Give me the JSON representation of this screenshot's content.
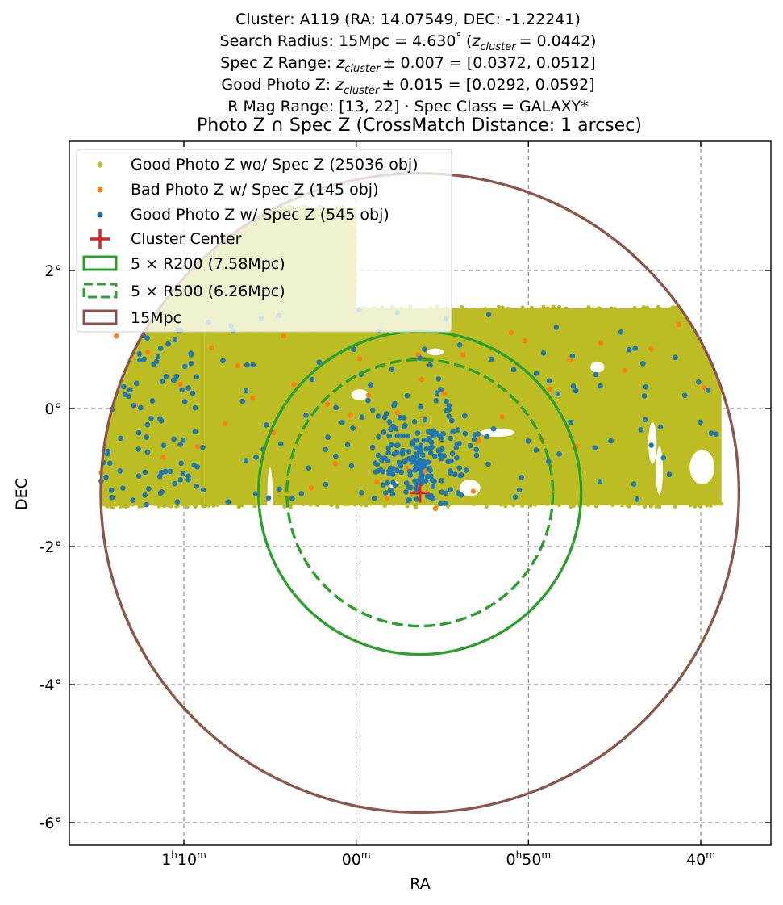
{
  "header": {
    "line1": "Cluster: A119 (RA: 14.07549, DEC: -1.22241)",
    "line2_a": "Search Radius: 15Mpc = 4.630",
    "line2_deg": "°",
    "line2_b": "(",
    "line2_z": "z",
    "line2_sub": "cluster",
    "line2_c": "= 0.0442)",
    "line3_a": "Spec Z Range: ",
    "line3_z": "z",
    "line3_sub": "cluster",
    "line3_c": "± 0.007 = [0.0372, 0.0512]",
    "line4_a": "Good Photo Z: ",
    "line4_z": "z",
    "line4_sub": "cluster",
    "line4_c": "± 0.015 = [0.0292, 0.0592]",
    "line5": "R Mag Range: [13, 22] · Spec Class = GALAXY*",
    "title": "Photo Z ∩ Spec Z (CrossMatch Distance: 1 arcsec)"
  },
  "chart_data": {
    "type": "scatter",
    "xlabel": "RA",
    "ylabel": "DEC",
    "xlim_deg": [
      19.0,
      -1.3
    ],
    "ylim_deg": [
      -6.3,
      3.9
    ],
    "x_ticks": [
      {
        "value": 17.5,
        "h": "1",
        "hs": "h",
        "m": "10",
        "ms": "m"
      },
      {
        "value": 15.0,
        "h": "",
        "hs": "",
        "m": "00",
        "ms": "m"
      },
      {
        "value": 12.5,
        "h": "0",
        "hs": "h",
        "m": "50",
        "ms": "m"
      },
      {
        "value": 10.0,
        "h": "",
        "hs": "",
        "m": "40",
        "ms": "m"
      }
    ],
    "y_ticks": [
      {
        "value": 2,
        "label": "2°"
      },
      {
        "value": 0,
        "label": "0°"
      },
      {
        "value": -2,
        "label": "-2°"
      },
      {
        "value": -4,
        "label": "-4°"
      },
      {
        "value": -6,
        "label": "-6°"
      }
    ],
    "grid": true,
    "legend_position": "top-left",
    "cluster_center": {
      "ra": 14.07549,
      "dec": -1.22241
    },
    "series": [
      {
        "name": "Good Photo Z wo/ Spec Z (25036 obj)",
        "color": "#bcbd22",
        "kind": "points",
        "count": 25036,
        "footprint": [
          {
            "ra": [
              9.7,
              17.2
            ],
            "dec": [
              -1.4,
              1.45
            ]
          },
          {
            "ra": [
              17.2,
              19.0
            ],
            "dec": [
              -1.4,
              1.15
            ]
          },
          {
            "ra": [
              15.0,
              19.0
            ],
            "dec": [
              1.15,
              2.9
            ]
          }
        ]
      },
      {
        "name": "Bad Photo Z w/ Spec Z (145 obj)",
        "color": "#ff7f0e",
        "kind": "points",
        "count": 145,
        "points": [
          [
            18.48,
            1.05
          ],
          [
            18.02,
            0.82
          ],
          [
            17.55,
            0.35
          ],
          [
            17.1,
            0.88
          ],
          [
            16.72,
            0.62
          ],
          [
            16.2,
            -0.35
          ],
          [
            18.7,
            -0.93
          ],
          [
            17.8,
            -0.71
          ],
          [
            16.9,
            -0.22
          ],
          [
            15.9,
            0.35
          ],
          [
            15.42,
            0.06
          ],
          [
            15.08,
            -0.1
          ],
          [
            14.82,
            0.19
          ],
          [
            14.4,
            -0.06
          ],
          [
            14.05,
            0.42
          ],
          [
            13.72,
            0.22
          ],
          [
            13.45,
            0.78
          ],
          [
            13.22,
            -0.47
          ],
          [
            12.88,
            -0.12
          ],
          [
            12.55,
            0.98
          ],
          [
            12.2,
            0.28
          ],
          [
            11.8,
            -0.54
          ],
          [
            11.45,
            0.95
          ],
          [
            11.1,
            0.55
          ],
          [
            10.72,
            0.86
          ],
          [
            10.32,
            1.22
          ],
          [
            9.95,
            0.3
          ],
          [
            14.25,
            -0.87
          ],
          [
            14.7,
            -1.06
          ],
          [
            13.95,
            -0.35
          ],
          [
            14.55,
            -1.3
          ],
          [
            13.6,
            -0.66
          ],
          [
            12.3,
            -0.45
          ],
          [
            14.0,
            -0.9
          ],
          [
            13.3,
            -1.2
          ],
          [
            15.3,
            -0.8
          ],
          [
            16.5,
            0.15
          ],
          [
            17.3,
            -0.55
          ],
          [
            18.2,
            0.05
          ],
          [
            12.75,
            1.1
          ],
          [
            11.9,
            0.7
          ],
          [
            14.95,
            0.72
          ],
          [
            13.85,
            -1.45
          ],
          [
            14.1,
            0.78
          ],
          [
            15.65,
            -1.15
          ],
          [
            16.05,
            1.05
          ]
        ]
      },
      {
        "name": "Good Photo Z w/ Spec Z (545 obj)",
        "color": "#1f77b4",
        "kind": "points",
        "count": 545,
        "cluster_core": {
          "ra": 14.1,
          "dec": -0.7,
          "sigma_ra": 0.38,
          "sigma_dec": 0.4,
          "n": 180
        },
        "field_n": 200
      }
    ],
    "regions": [
      {
        "name": "5 × R200 (7.58Mpc)",
        "color": "#2ca02c",
        "style": "solid",
        "radius_deg": 2.34,
        "ra": 14.07549,
        "dec": -1.22241
      },
      {
        "name": "5 × R500 (6.26Mpc)",
        "color": "#2ca02c",
        "style": "dashed",
        "radius_deg": 1.93,
        "ra": 14.07549,
        "dec": -1.22241
      },
      {
        "name": "15Mpc",
        "color": "#8c564b",
        "style": "solid",
        "radius_deg": 4.63,
        "ra": 14.07549,
        "dec": -1.22241
      }
    ],
    "center_marker": {
      "name": "Cluster Center",
      "color": "#d62728",
      "marker": "plus"
    }
  },
  "colors": {
    "good_photo": "#bcbd22",
    "bad_photo": "#ff7f0e",
    "good_spec": "#1f77b4",
    "r200": "#2ca02c",
    "r500": "#2ca02c",
    "mpc15": "#8c564b",
    "center": "#d62728"
  }
}
